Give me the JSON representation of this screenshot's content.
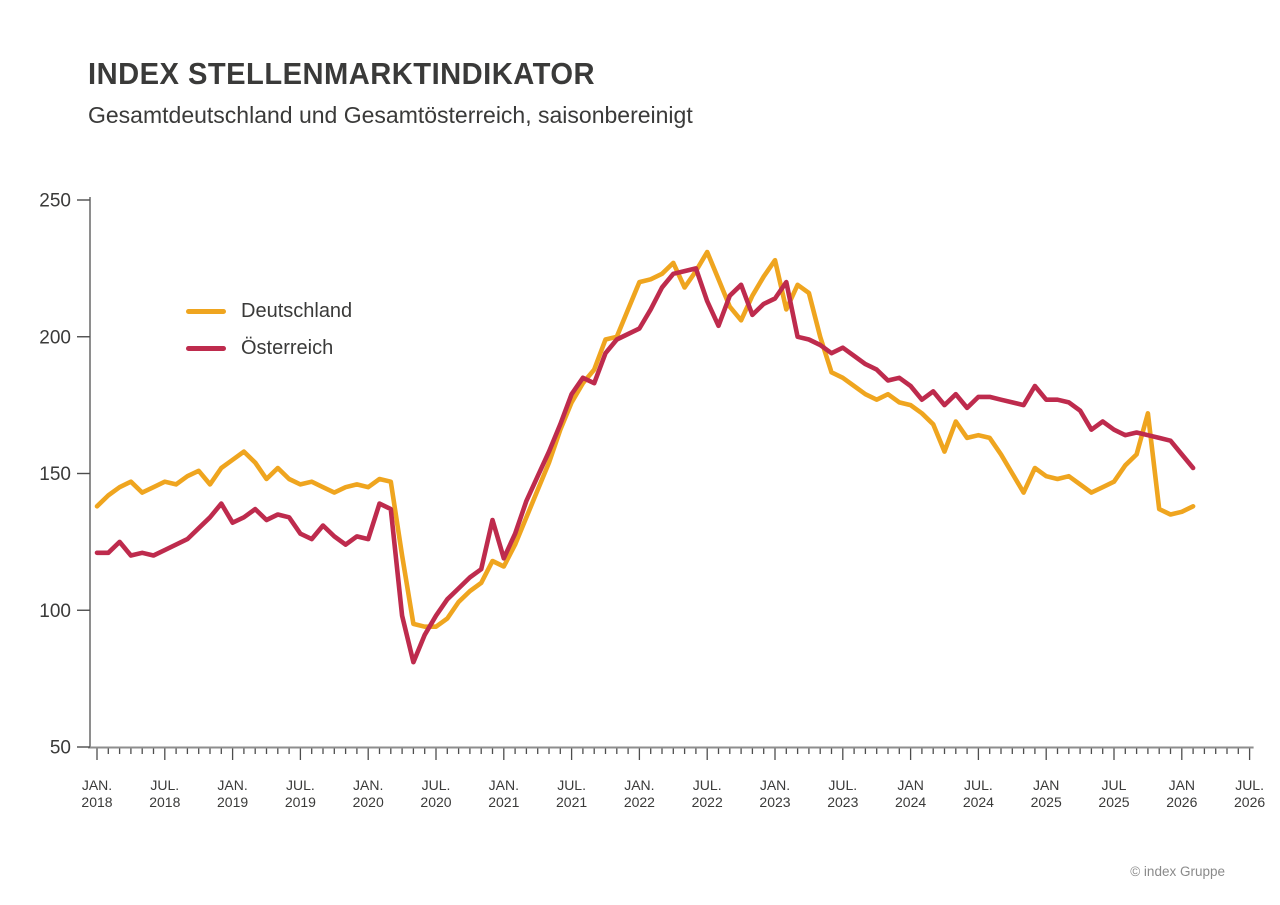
{
  "header": {
    "title": "INDEX STELLENMARKTINDIKATOR",
    "subtitle": "Gesamtdeutschland und Gesamtösterreich, saisonbereinigt"
  },
  "footer": {
    "copyright": "© index Gruppe"
  },
  "chart_data": {
    "type": "line",
    "title": "INDEX STELLENMARKTINDIKATOR",
    "subtitle": "Gesamtdeutschland und Gesamtösterreich, saisonbereinigt",
    "x_start": "JAN. 2018",
    "x_frequency": "monthly",
    "ylim": [
      50,
      250
    ],
    "yticks": [
      250,
      200,
      150,
      100,
      50
    ],
    "grid": false,
    "legend_position": "inside-top-left",
    "x_tick_labels": [
      {
        "month": "JAN.",
        "year": "2018"
      },
      {
        "month": "JUL.",
        "year": "2018"
      },
      {
        "month": "JAN.",
        "year": "2019"
      },
      {
        "month": "JUL.",
        "year": "2019"
      },
      {
        "month": "JAN.",
        "year": "2020"
      },
      {
        "month": "JUL.",
        "year": "2020"
      },
      {
        "month": "JAN.",
        "year": "2021"
      },
      {
        "month": "JUL.",
        "year": "2021"
      },
      {
        "month": "JAN.",
        "year": "2022"
      },
      {
        "month": "JUL.",
        "year": "2022"
      },
      {
        "month": "JAN.",
        "year": "2023"
      },
      {
        "month": "JUL.",
        "year": "2023"
      },
      {
        "month": "JAN",
        "year": "2024"
      },
      {
        "month": "JUL.",
        "year": "2024"
      },
      {
        "month": "JAN",
        "year": "2025"
      },
      {
        "month": "JUL",
        "year": "2025"
      },
      {
        "month": "JAN",
        "year": "2026"
      },
      {
        "month": "JUL.",
        "year": "2026"
      }
    ],
    "series": [
      {
        "name": "Deutschland",
        "color": "#EFA51F",
        "values": [
          138,
          142,
          145,
          147,
          143,
          145,
          147,
          146,
          149,
          151,
          146,
          152,
          155,
          158,
          154,
          148,
          152,
          148,
          146,
          147,
          145,
          143,
          145,
          146,
          145,
          148,
          147,
          120,
          95,
          94,
          94,
          97,
          103,
          107,
          110,
          118,
          116,
          124,
          134,
          144,
          154,
          166,
          176,
          183,
          188,
          199,
          200,
          210,
          220,
          221,
          223,
          227,
          218,
          224,
          231,
          221,
          211,
          206,
          215,
          222,
          228,
          210,
          219,
          216,
          200,
          187,
          185,
          182,
          179,
          177,
          179,
          176,
          175,
          172,
          168,
          158,
          169,
          163,
          164,
          163,
          157,
          150,
          143,
          152,
          149,
          148,
          149,
          146,
          143,
          145,
          147,
          153,
          157,
          172,
          137,
          135,
          136,
          138
        ]
      },
      {
        "name": "Österreich",
        "color": "#BE2B4D",
        "values": [
          121,
          121,
          125,
          120,
          121,
          120,
          122,
          124,
          126,
          130,
          134,
          139,
          132,
          134,
          137,
          133,
          135,
          134,
          128,
          126,
          131,
          127,
          124,
          127,
          126,
          139,
          137,
          98,
          81,
          91,
          98,
          104,
          108,
          112,
          115,
          133,
          119,
          128,
          140,
          149,
          158,
          168,
          179,
          185,
          183,
          194,
          199,
          201,
          203,
          210,
          218,
          223,
          224,
          225,
          213,
          204,
          215,
          219,
          208,
          212,
          214,
          220,
          200,
          199,
          197,
          194,
          196,
          193,
          190,
          188,
          184,
          185,
          182,
          177,
          180,
          175,
          179,
          174,
          178,
          178,
          177,
          176,
          175,
          182,
          177,
          177,
          176,
          173,
          166,
          169,
          166,
          164,
          165,
          164,
          163,
          162,
          157,
          152
        ]
      }
    ],
    "axis_color": "#8e8e8e",
    "tick_color": "#4d4d4d"
  }
}
